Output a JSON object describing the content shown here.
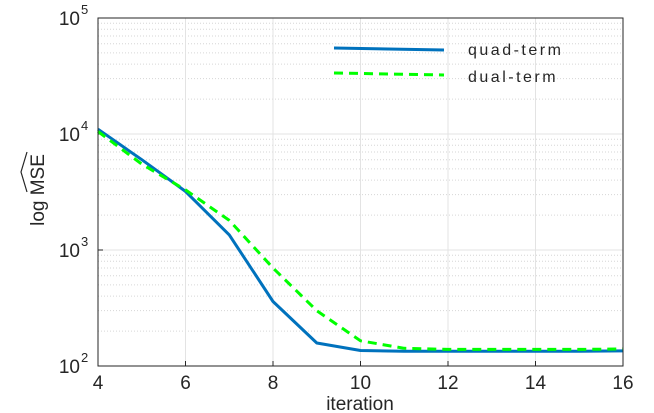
{
  "chart_data": {
    "type": "line",
    "title": "",
    "xlabel": "iteration",
    "ylabel": "log MSE",
    "xlim": [
      4,
      16
    ],
    "ylim": [
      100,
      100000
    ],
    "yscale": "log",
    "grid": true,
    "legend_position": "top-right",
    "x_ticks": [
      4,
      6,
      8,
      10,
      12,
      14,
      16
    ],
    "x_tick_labels": [
      "4",
      "6",
      "8",
      "10",
      "12",
      "14",
      "16"
    ],
    "y_tick_labels": [
      {
        "value": 100,
        "base": "10",
        "exp": "2"
      },
      {
        "value": 1000,
        "base": "10",
        "exp": "3"
      },
      {
        "value": 10000,
        "base": "10",
        "exp": "4"
      },
      {
        "value": 100000,
        "base": "10",
        "exp": "5"
      }
    ],
    "series": [
      {
        "name": "quad-term",
        "color": "#0072BD",
        "style": "solid",
        "x": [
          4,
          5,
          6,
          7,
          8,
          9,
          10,
          11,
          12,
          13,
          14,
          15,
          16
        ],
        "y": [
          11000,
          6000,
          3200,
          1350,
          360,
          158,
          136,
          134,
          134,
          134,
          134,
          134,
          135
        ]
      },
      {
        "name": "dual-term",
        "color": "#00FF00",
        "style": "dashed",
        "x": [
          4,
          5,
          6,
          7,
          8,
          9,
          10,
          11,
          12,
          13,
          14,
          15,
          16
        ],
        "y": [
          10500,
          5500,
          3300,
          1800,
          700,
          300,
          165,
          142,
          139,
          139,
          139,
          139,
          140
        ]
      }
    ]
  }
}
